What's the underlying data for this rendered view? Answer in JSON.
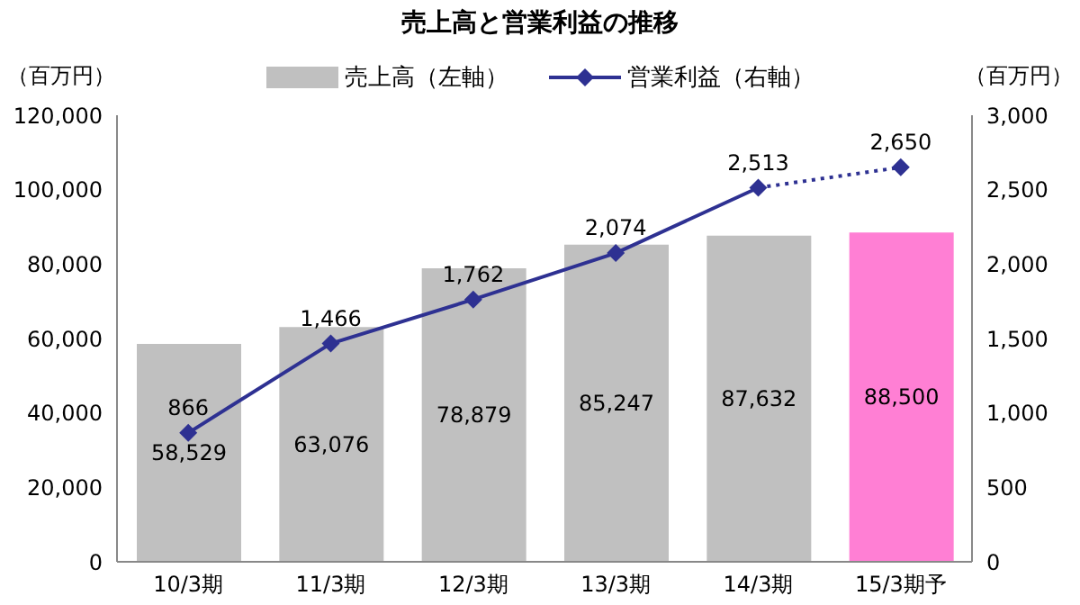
{
  "chart_data": {
    "type": "bar",
    "title": "売上高と営業利益の推移",
    "ylabel": "（百万円）",
    "y2label": "（百万円）",
    "categories": [
      "10/3期",
      "11/3期",
      "12/3期",
      "13/3期",
      "14/3期",
      "15/3期予"
    ],
    "series": [
      {
        "name": "売上高（左軸）",
        "colors": [
          "#c0c0c0",
          "#c0c0c0",
          "#c0c0c0",
          "#c0c0c0",
          "#c0c0c0",
          "#ff7fd4"
        ],
        "values": [
          58529,
          63076,
          78879,
          85247,
          87632,
          88500
        ],
        "value_labels": [
          "58,529",
          "63,076",
          "78,879",
          "85,247",
          "87,632",
          "88,500"
        ]
      },
      {
        "name": "営業利益（右軸）",
        "type": "line",
        "axis": "y2",
        "color": "#2e3192",
        "marker": "diamond",
        "line_style": "solid",
        "values": [
          866,
          1466,
          1762,
          2074,
          2513,
          null
        ],
        "value_labels": [
          "866",
          "1,466",
          "1,762",
          "2,074",
          "2,513",
          null
        ]
      },
      {
        "type": "line",
        "axis": "y2",
        "color": "#2e3192",
        "marker": "diamond",
        "line_style": "dotted",
        "values": [
          null,
          null,
          null,
          null,
          2513,
          2650
        ],
        "value_labels": [
          null,
          null,
          null,
          null,
          null,
          "2,650"
        ]
      }
    ],
    "ylim": [
      0,
      120000
    ],
    "yticks": [
      0,
      {
        "value": 20000,
        "label": "20,000"
      },
      {
        "value": 40000,
        "label": "40,000"
      },
      {
        "value": 60000,
        "label": "60,000"
      },
      {
        "value": 80000,
        "label": "80,000"
      },
      {
        "value": 100000,
        "label": "100,000"
      },
      {
        "value": 120000,
        "label": "120,000"
      }
    ],
    "y2lim": [
      0,
      3000
    ],
    "y2ticks": [
      0,
      500,
      {
        "value": 1000,
        "label": "1,000"
      },
      {
        "value": 1500,
        "label": "1,500"
      },
      {
        "value": 2000,
        "label": "2,000"
      },
      {
        "value": 2500,
        "label": "2,500"
      },
      {
        "value": 3000,
        "label": "3,000"
      }
    ],
    "grid": false,
    "legend": "top"
  }
}
